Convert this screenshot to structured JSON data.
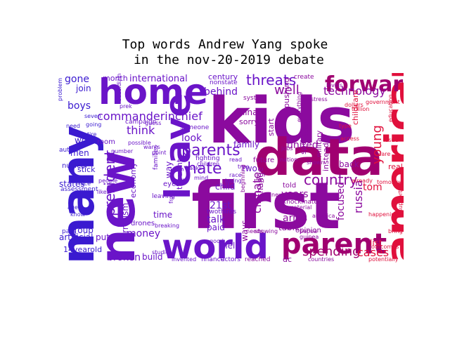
{
  "title_line1": "Top words Andrew Yang spoke",
  "title_line2": " in the nov-20-2019 debate",
  "colors": {
    "purple": "#6a14c8",
    "violet": "#8b0a9e",
    "red": "#e0103c",
    "blue": "#3a1ad0",
    "magenta": "#a00070"
  },
  "words": {
    "kids": "kids",
    "first": "first",
    "many": "many",
    "new": "new",
    "data": "data",
    "home": "home",
    "american": "american",
    "world": "world",
    "leave": "leave",
    "parent": "parent",
    "forward": "forward",
    "parents": "parents",
    "hate": "hate",
    "country": "country",
    "commanderinchief": "commanderinchief",
    "international": "international",
    "threats": "threats",
    "well": "well",
    "technology": "technology",
    "president": "president",
    "climate": "climate",
    "russia": "russia",
    "young": "young",
    "spending": "spending",
    "cases": "cases",
    "tom": "tom",
    "focused": "focused",
    "united": "united",
    "arms": "arms",
    "years": "years",
    "talk": "talk",
    "help": "help",
    "money": "money",
    "broken": "broken",
    "build": "build",
    "think": "think",
    "look": "look",
    "behind": "behind",
    "boys": "boys",
    "men": "men",
    "gone": "gone",
    "join": "join",
    "states": "states",
    "terrorism": "terrorism",
    "ways": "ways",
    "21st": "21st",
    "two": "two",
    "china": "china",
    "child": "child",
    "table": "table",
    "put": "put",
    "group": "group",
    "back": "back",
    "way": "way",
    "family": "family",
    "economy": "economy",
    "time": "time",
    "paid": "paid",
    "century": "century",
    "month": "month",
    "instead": "instead",
    "childcare": "childcare",
    "sorry": "sorry",
    "start": "start",
    "work": "work",
    "14yearold": "14yearold",
    "twothirds": "twothirds",
    "al": "al",
    "thought": "thought",
    "drones": "drones",
    "pushing": "pushing",
    "dc": "dc",
    "opinion": "opinion",
    "military": "military",
    "real": "real",
    "list": "list",
    "spend": "spend",
    "told": "told",
    "knockmaterial": "knockmaterial",
    "change": "change",
    "eyes": "eyes",
    "future": "future",
    "fighting": "fighting",
    "leaving": "leaving",
    "families": "families",
    "nonstate": "nonstate",
    "system": "system",
    "create": "create",
    "finance": "finance",
    "actors": "actors",
    "reached": "reached",
    "invented": "invented",
    "studies": "studies",
    "artificial": "artificial",
    "stick": "stick",
    "nuclear": "nuclear",
    "autistic": "autistic",
    "problem": "problem",
    "campaign": "campaign",
    "someone": "someone",
    "fm": "fm",
    "breaking": "breaking",
    "needs": "needs",
    "showing": "showing",
    "countries": "countries",
    "potentially": "potentially",
    "outcomes": "outcomes",
    "happening": "happening",
    "tomorrow": "tomorrow",
    "already": "already",
    "bring": "bring",
    "government": "government",
    "assessment": "assessment",
    "prek": "prek",
    "seven": "seven",
    "number": "number",
    "entire": "entire",
    "possible": "possible",
    "guinea": "guinea",
    "papua": "papua",
    "america": "america",
    "stress": "stress",
    "levels": "levels",
    "access": "access",
    "type": "type",
    "dollars": "dollars",
    "trillion": "trillion",
    "race": "race",
    "losing": "losing",
    "read": "read",
    "true": "true",
    "beginning": "beginning",
    "everything": "everything",
    "material": "material",
    "next": "next",
    "process": "process",
    "nation": "nation",
    "shown": "shown",
    "children": "children",
    "pass": "pass",
    "room": "room",
    "guess": "guess",
    "front": "front",
    "rid": "rid",
    "backs": "backs",
    "point": "point",
    "education": "education",
    "supporting": "supporting",
    "subsidizing": "subsidizing",
    "care": "care",
    "issue": "issue",
    "face": "face",
    "wants": "wants",
    "jobs": "jobs",
    "mind": "mind",
    "age": "age",
    "good": "good",
    "people": "people",
    "like": "like",
    "need": "need",
    "going": "going",
    "know": "know"
  }
}
